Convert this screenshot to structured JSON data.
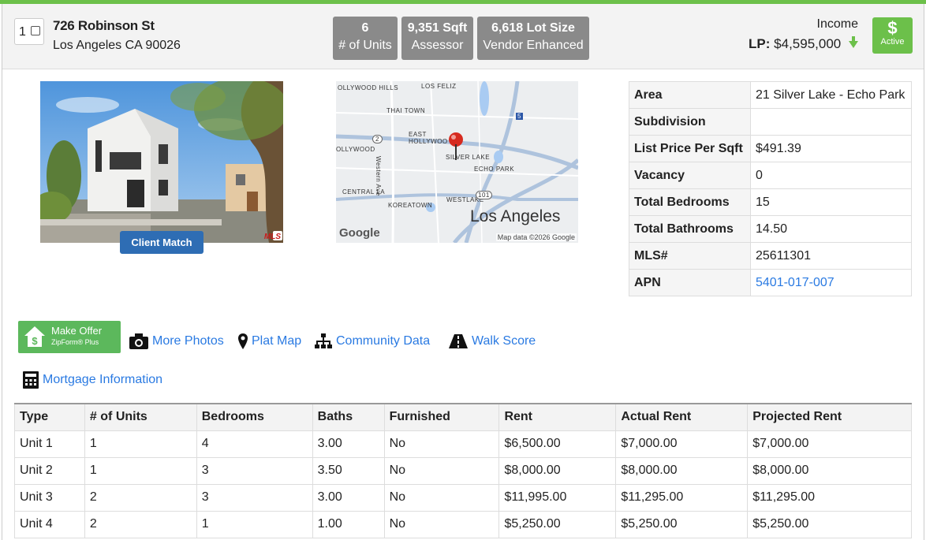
{
  "header": {
    "checkbox_number": "1",
    "address_line1": "726 Robinson St",
    "address_line2": "Los Angeles CA 90026",
    "stats": [
      {
        "value": "6",
        "label": "# of Units"
      },
      {
        "value": "9,351 Sqft",
        "label": "Assessor"
      },
      {
        "value": "6,618 Lot Size",
        "label": "Vendor Enhanced"
      }
    ],
    "type_label": "Income",
    "lp_prefix": "LP:",
    "lp_value": "$4,595,000",
    "status_symbol": "$",
    "status_label": "Active"
  },
  "photo": {
    "client_match_label": "Client Match",
    "mls_badge": "MLS"
  },
  "map": {
    "labels": [
      "OLLYWOOD HILLS",
      "LOS FELIZ",
      "THAI TOWN",
      "EAST HOLLYWOO",
      "OLLYWOOD",
      "SILVER LAKE",
      "ECHO PARK",
      "CENTRAL LA",
      "WESTLAKE",
      "KOREATOWN",
      "Western Ave"
    ],
    "city": "Los Angeles",
    "shields": [
      "2",
      "5",
      "101"
    ],
    "attribution": "Map data ©2026 Google",
    "google": "Google"
  },
  "info_table": [
    {
      "key": "Area",
      "value": "21 Silver Lake - Echo Park"
    },
    {
      "key": "Subdivision",
      "value": ""
    },
    {
      "key": "List Price Per Sqft",
      "value": "$491.39"
    },
    {
      "key": "Vacancy",
      "value": "0"
    },
    {
      "key": "Total Bedrooms",
      "value": "15"
    },
    {
      "key": "Total Bathrooms",
      "value": "14.50"
    },
    {
      "key": "MLS#",
      "value": "25611301"
    },
    {
      "key": "APN",
      "value": "5401-017-007"
    }
  ],
  "actions": {
    "make_offer": "Make Offer",
    "make_offer_sub": "ZipForm® Plus",
    "more_photos": "More Photos",
    "plat_map": "Plat Map",
    "community_data": "Community Data",
    "walk_score": "Walk Score",
    "mortgage": "Mortgage Information"
  },
  "units_table": {
    "headers": [
      "Type",
      "# of Units",
      "Bedrooms",
      "Baths",
      "Furnished",
      "Rent",
      "Actual Rent",
      "Projected Rent"
    ],
    "rows": [
      [
        "Unit 1",
        "1",
        "4",
        "3.00",
        "No",
        "$6,500.00",
        "$7,000.00",
        "$7,000.00"
      ],
      [
        "Unit 2",
        "1",
        "3",
        "3.50",
        "No",
        "$8,000.00",
        "$8,000.00",
        "$8,000.00"
      ],
      [
        "Unit 3",
        "2",
        "3",
        "3.00",
        "No",
        "$11,995.00",
        "$11,295.00",
        "$11,295.00"
      ],
      [
        "Unit 4",
        "2",
        "1",
        "1.00",
        "No",
        "$5,250.00",
        "$5,250.00",
        "$5,250.00"
      ]
    ]
  },
  "colors": {
    "accent_green": "#6cc04a",
    "link_blue": "#2a7ae2",
    "stat_gray": "#8a8a8a",
    "client_match_blue": "#2e6db4"
  }
}
